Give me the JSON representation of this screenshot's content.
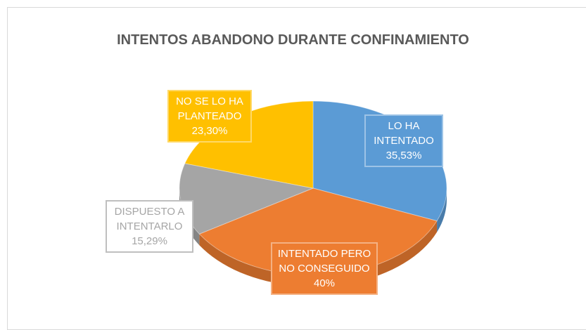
{
  "chart_data": {
    "type": "pie",
    "title": "INTENTOS ABANDONO DURANTE CONFINAMIENTO",
    "categories": [
      "LO HA INTENTADO",
      "INTENTADO PERO NO CONSEGUIDO",
      "DISPUESTO A INTENTARLO",
      "NO SE LO HA PLANTEADO"
    ],
    "values": [
      35.53,
      40,
      15.29,
      23.3
    ],
    "value_labels": [
      "35,53%",
      "40%",
      "15,29%",
      "23,30%"
    ],
    "colors": [
      "#5b9bd5",
      "#ed7d31",
      "#a5a5a5",
      "#ffc000"
    ]
  }
}
